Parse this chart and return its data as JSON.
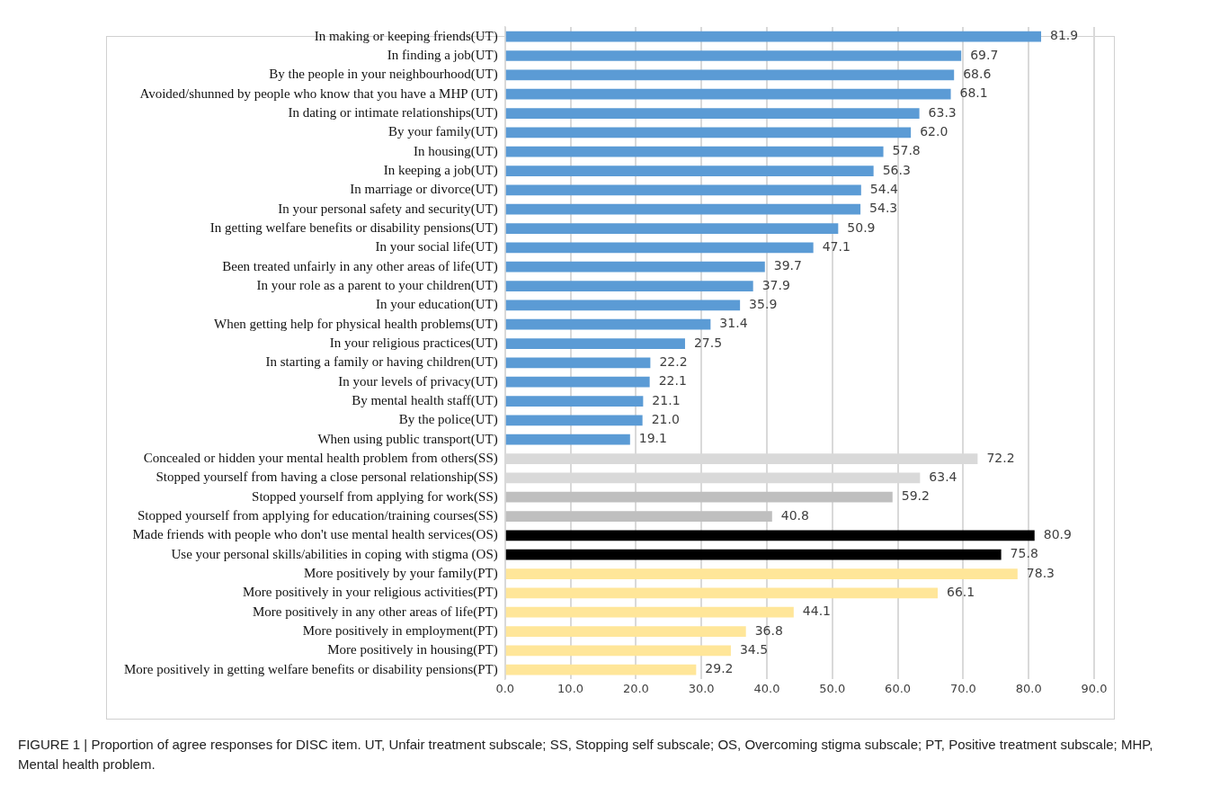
{
  "chart_data": {
    "type": "bar",
    "orientation": "horizontal",
    "categories": [
      "In making or keeping friends(UT)",
      "In finding a job(UT)",
      "By the people in your neighbourhood(UT)",
      "Avoided/shunned by people who know that you have a MHP (UT)",
      "In dating or intimate relationships(UT)",
      "By your family(UT)",
      "In housing(UT)",
      "In keeping a job(UT)",
      "In marriage or divorce(UT)",
      "In your personal safety and security(UT)",
      "In getting welfare benefits or disability pensions(UT)",
      "In your social life(UT)",
      "Been treated unfairly in any other areas of life(UT)",
      "In your role as a parent to your children(UT)",
      "In your education(UT)",
      "When getting help for physical health problems(UT)",
      "In your religious practices(UT)",
      "In starting a family or having children(UT)",
      "In your levels of privacy(UT)",
      "By mental health staff(UT)",
      "By the police(UT)",
      "When using public transport(UT)",
      "Concealed or hidden your mental health problem from others(SS)",
      "Stopped yourself from having a close personal relationship(SS)",
      "Stopped yourself from applying for work(SS)",
      "Stopped yourself from applying for education/training courses(SS)",
      "Made friends with people who don't use mental health services(OS)",
      "Use your personal skills/abilities in coping with stigma (OS)",
      "More positively by your family(PT)",
      "More positively in your religious activities(PT)",
      "More positively in any other areas of life(PT)",
      "More positively in employment(PT)",
      "More positively in housing(PT)",
      "More positively in getting welfare benefits or disability pensions(PT)"
    ],
    "values": [
      81.9,
      69.7,
      68.6,
      68.1,
      63.3,
      62.0,
      57.8,
      56.3,
      54.4,
      54.3,
      50.9,
      47.1,
      39.7,
      37.9,
      35.9,
      31.4,
      27.5,
      22.2,
      22.1,
      21.1,
      21.0,
      19.1,
      72.2,
      63.4,
      59.2,
      40.8,
      80.9,
      75.8,
      78.3,
      66.1,
      44.1,
      36.8,
      34.5,
      29.2
    ],
    "value_labels": [
      "81.9",
      "69.7",
      "68.6",
      "68.1",
      "63.3",
      "62.0",
      "57.8",
      "56.3",
      "54.4",
      "54.3",
      "50.9",
      "47.1",
      "39.7",
      "37.9",
      "35.9",
      "31.4",
      "27.5",
      "22.2",
      "22.1",
      "21.1",
      "21.0",
      "19.1",
      "72.2",
      "63.4",
      "59.2",
      "40.8",
      "80.9",
      "75.8",
      "78.3",
      "66.1",
      "44.1",
      "36.8",
      "34.5",
      "29.2"
    ],
    "colors": [
      "#5b9bd5",
      "#5b9bd5",
      "#5b9bd5",
      "#5b9bd5",
      "#5b9bd5",
      "#5b9bd5",
      "#5b9bd5",
      "#5b9bd5",
      "#5b9bd5",
      "#5b9bd5",
      "#5b9bd5",
      "#5b9bd5",
      "#5b9bd5",
      "#5b9bd5",
      "#5b9bd5",
      "#5b9bd5",
      "#5b9bd5",
      "#5b9bd5",
      "#5b9bd5",
      "#5b9bd5",
      "#5b9bd5",
      "#5b9bd5",
      "#d9d9d9",
      "#d9d9d9",
      "#bfbfbf",
      "#bfbfbf",
      "#000000",
      "#000000",
      "#ffe699",
      "#ffe699",
      "#ffe699",
      "#ffe699",
      "#ffe699",
      "#ffe699"
    ],
    "xlim": [
      0,
      90
    ],
    "xticks": [
      {
        "value": 0,
        "label": "0.0"
      },
      {
        "value": 10,
        "label": "10.0"
      },
      {
        "value": 20,
        "label": "20.0"
      },
      {
        "value": 30,
        "label": "30.0"
      },
      {
        "value": 40,
        "label": "40.0"
      },
      {
        "value": 50,
        "label": "50.0"
      },
      {
        "value": 60,
        "label": "60.0"
      },
      {
        "value": 70,
        "label": "70.0"
      },
      {
        "value": 80,
        "label": "80.0"
      },
      {
        "value": 90,
        "label": "90.0"
      }
    ],
    "grid": "x",
    "annotations": [
      "FIGURE 1 | Proportion of agree responses for DISC item. UT, Unfair treatment subscale; SS, Stopping self subscale; OS, Overcoming stigma subscale; PT, Positive treatment subscale; MHP, Mental health problem."
    ]
  }
}
